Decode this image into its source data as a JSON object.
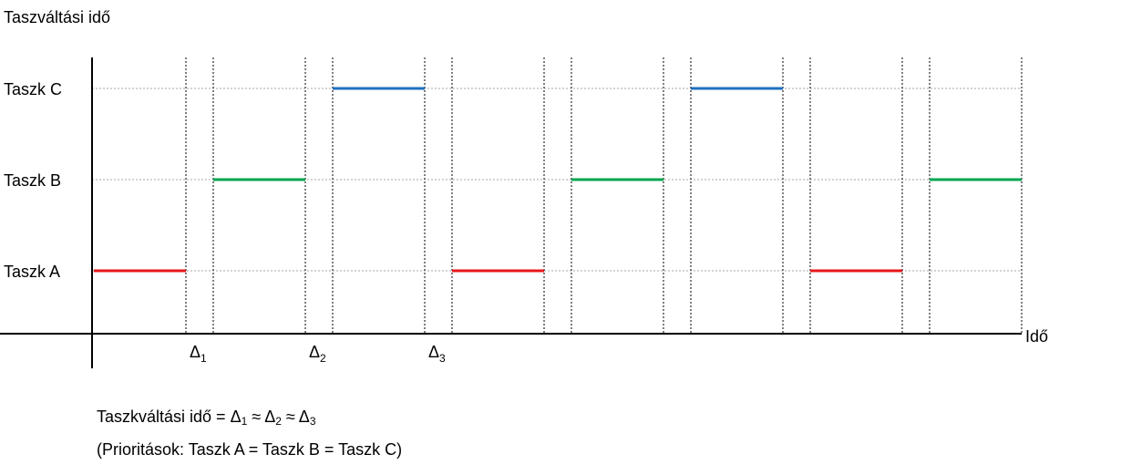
{
  "title": "Taszváltási idő",
  "x_axis_label": "Idő",
  "tasks": [
    {
      "label": "Taszk C",
      "color": "#1f6fbf"
    },
    {
      "label": "Taszk B",
      "color": "#00a550"
    },
    {
      "label": "Taszk A",
      "color": "#e8161a"
    }
  ],
  "delta_symbol": "Δ",
  "delta_markers": [
    {
      "symbol": "Δ",
      "subscript": "1"
    },
    {
      "symbol": "Δ",
      "subscript": "2"
    },
    {
      "symbol": "Δ",
      "subscript": "3"
    }
  ],
  "schedule": [
    {
      "task": "Taszk A",
      "slot": 0
    },
    {
      "task": "Taszk B",
      "slot": 1
    },
    {
      "task": "Taszk C",
      "slot": 2
    },
    {
      "task": "Taszk A",
      "slot": 3
    },
    {
      "task": "Taszk B",
      "slot": 4
    },
    {
      "task": "Taszk C",
      "slot": 5
    },
    {
      "task": "Taszk A",
      "slot": 6
    },
    {
      "task": "Taszk B",
      "slot": 7
    }
  ],
  "formula": {
    "lhs": "Taszkváltási idő = ",
    "sep1": " ≈ ",
    "sep2": " ≈ "
  },
  "priorities_note": "(Prioritások: Taszk A = Taszk B = Taszk C)"
}
